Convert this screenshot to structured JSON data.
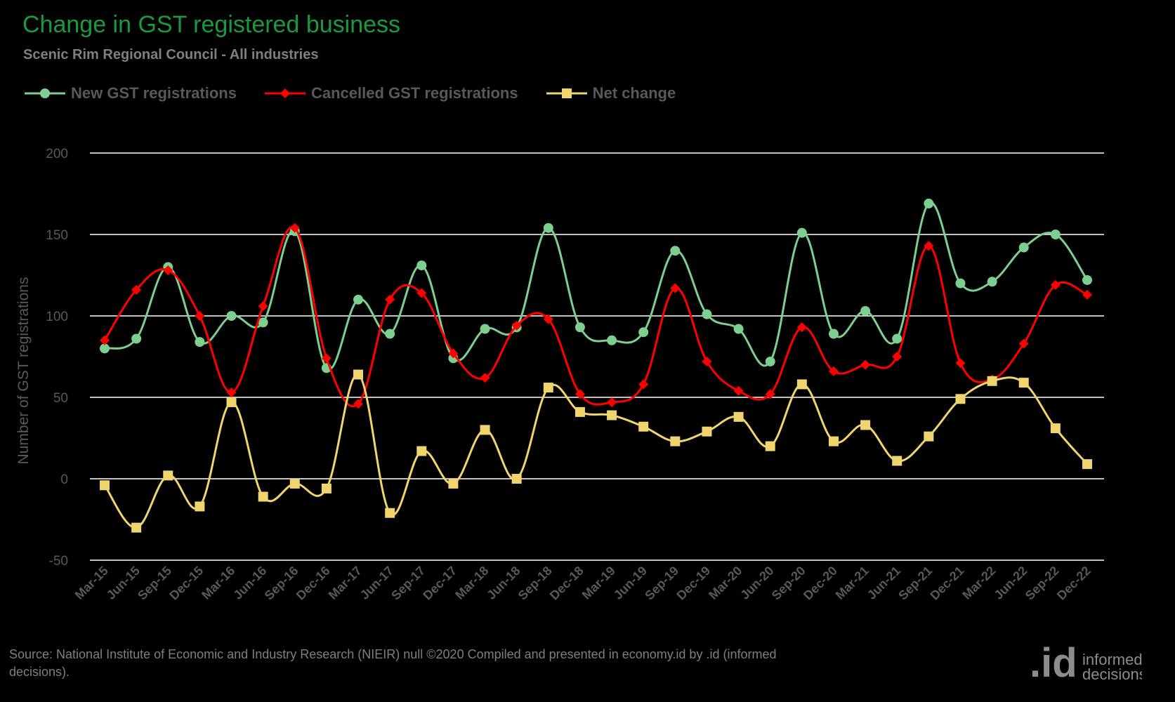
{
  "header": {
    "title": "Change in GST registered business",
    "subtitle": "Scenic Rim Regional Council - All industries"
  },
  "source_text": "Source: National Institute of Economic and Industry Research (NIEIR) null ©2020 Compiled and presented in economy.id by .id (informed decisions).",
  "logo": {
    "mark": ".id",
    "line1": "informed",
    "line2": "decisions"
  },
  "chart_data": {
    "type": "line",
    "title": "Change in GST registered business",
    "subtitle": "Scenic Rim Regional Council - All industries",
    "xlabel": "",
    "ylabel": "Number of GST registrations",
    "ylim": [
      -50,
      200
    ],
    "yticks": [
      -50,
      0,
      50,
      100,
      150,
      200
    ],
    "grid": true,
    "legend_position": "top-left",
    "categories": [
      "Mar-15",
      "Jun-15",
      "Sep-15",
      "Dec-15",
      "Mar-16",
      "Jun-16",
      "Sep-16",
      "Dec-16",
      "Mar-17",
      "Jun-17",
      "Sep-17",
      "Dec-17",
      "Mar-18",
      "Jun-18",
      "Sep-18",
      "Dec-18",
      "Mar-19",
      "Jun-19",
      "Sep-19",
      "Dec-19",
      "Mar-20",
      "Jun-20",
      "Sep-20",
      "Dec-20",
      "Mar-21",
      "Jun-21",
      "Sep-21",
      "Dec-21",
      "Mar-22",
      "Jun-22",
      "Sep-22",
      "Dec-22"
    ],
    "series": [
      {
        "name": "New GST registrations",
        "color": "#7dcf8f",
        "marker": "circle",
        "values": [
          80,
          86,
          130,
          84,
          100,
          96,
          152,
          68,
          110,
          89,
          131,
          74,
          92,
          93,
          154,
          93,
          85,
          90,
          140,
          101,
          92,
          72,
          151,
          89,
          103,
          86,
          169,
          120,
          121,
          142,
          150,
          122
        ]
      },
      {
        "name": "Cancelled GST registrations",
        "color": "#ff0000",
        "marker": "diamond",
        "values": [
          85,
          116,
          128,
          100,
          53,
          106,
          154,
          74,
          46,
          110,
          114,
          77,
          62,
          94,
          98,
          52,
          47,
          58,
          117,
          72,
          54,
          52,
          93,
          66,
          70,
          75,
          143,
          71,
          61,
          83,
          119,
          113
        ]
      },
      {
        "name": "Net change",
        "color": "#f0d46e",
        "marker": "square",
        "values": [
          -4,
          -30,
          2,
          -17,
          47,
          -11,
          -3,
          -6,
          64,
          -21,
          17,
          -3,
          30,
          0,
          56,
          41,
          39,
          32,
          23,
          29,
          38,
          20,
          58,
          23,
          33,
          11,
          26,
          49,
          60,
          59,
          31,
          9
        ]
      }
    ]
  }
}
